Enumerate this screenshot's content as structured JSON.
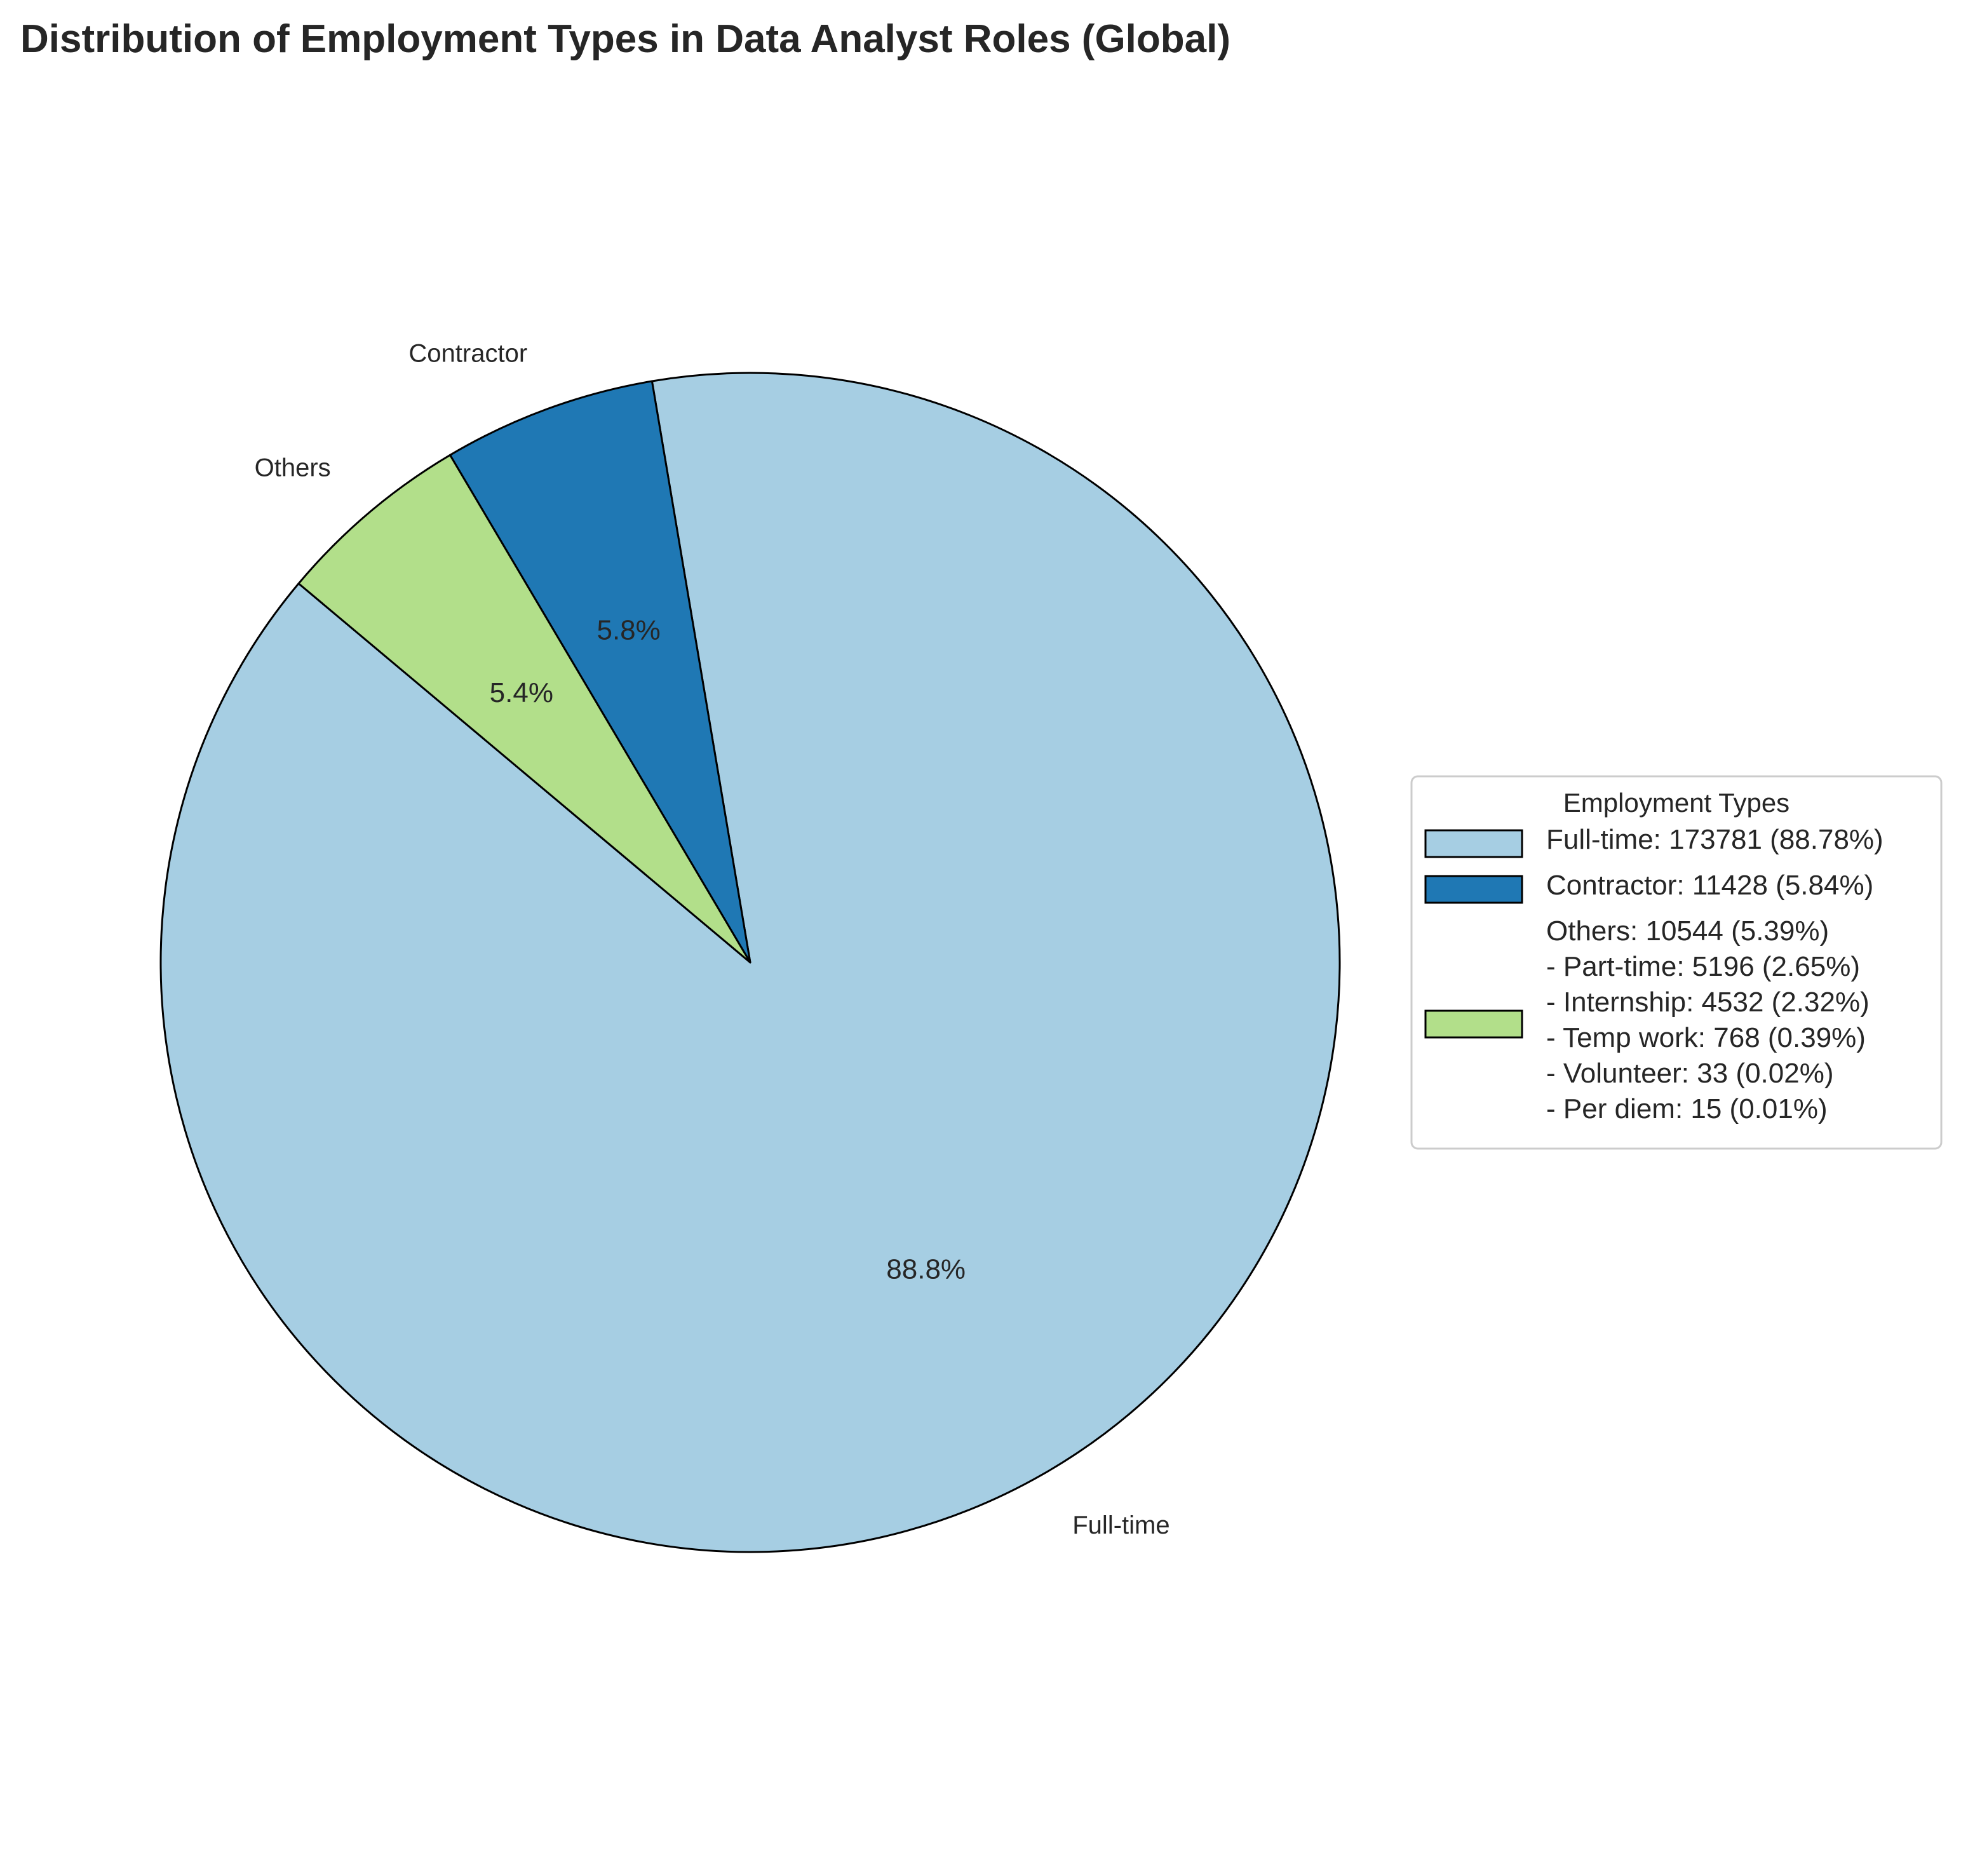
{
  "chart_data": {
    "type": "pie",
    "title": "Distribution of Employment Types in Data Analyst Roles (Global)",
    "start_angle_deg": 140,
    "counterclock": true,
    "slices": [
      {
        "label": "Full-time",
        "value": 173781,
        "pct_label": "88.8%",
        "color": "#a6cee3"
      },
      {
        "label": "Contractor",
        "value": 11428,
        "pct_label": "5.8%",
        "color": "#1f78b4"
      },
      {
        "label": "Others",
        "value": 10544,
        "pct_label": "5.4%",
        "color": "#b2df8a"
      }
    ],
    "edge_color": "#000000",
    "legend": {
      "title": "Employment Types",
      "placement": "center-right",
      "entries": [
        {
          "color": "#a6cee3",
          "lines": [
            "Full-time: 173781 (88.78%)"
          ]
        },
        {
          "color": "#1f78b4",
          "lines": [
            "Contractor: 11428 (5.84%)"
          ]
        },
        {
          "color": "#b2df8a",
          "lines": [
            "Others: 10544 (5.39%)",
            "- Part-time: 5196 (2.65%)",
            "- Internship: 4532 (2.32%)",
            "- Temp work: 768 (0.39%)",
            "- Volunteer: 33 (0.02%)",
            "- Per diem: 15 (0.01%)"
          ]
        }
      ]
    }
  }
}
